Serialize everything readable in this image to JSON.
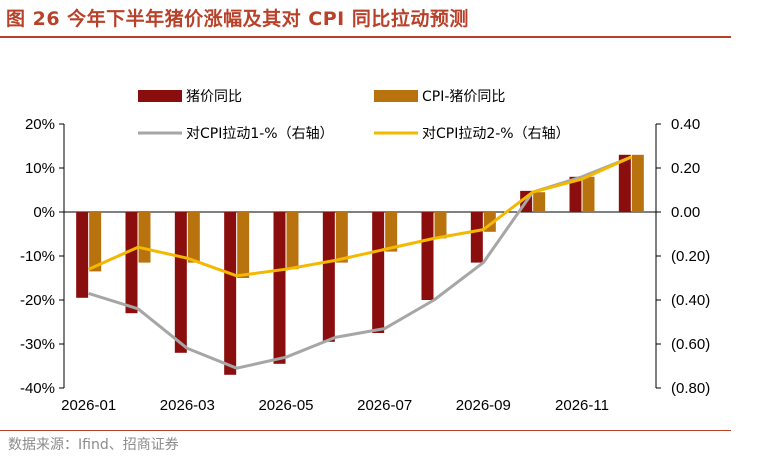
{
  "title": "图 26 今年下半年猪价涨幅及其对 CPI 同比拉动预测",
  "source": "数据来源：Ifind、招商证券",
  "chart_data": {
    "type": "bar",
    "categories": [
      "2026-01",
      "2026-02",
      "2026-03",
      "2026-04",
      "2026-05",
      "2026-06",
      "2026-07",
      "2026-08",
      "2026-09",
      "2026-10",
      "2026-11",
      "2026-12"
    ],
    "x_tick_labels": [
      "2026-01",
      "2026-03",
      "2026-05",
      "2026-07",
      "2026-09",
      "2026-11"
    ],
    "y_left": {
      "min": -40,
      "max": 20,
      "step": 10,
      "ticks": [
        "20%",
        "10%",
        "0%",
        "-10%",
        "-20%",
        "-30%",
        "-40%"
      ]
    },
    "y_right": {
      "min": -0.8,
      "max": 0.4,
      "step": 0.2,
      "ticks": [
        "0.40",
        "0.20",
        "0.00",
        "(0.20)",
        "(0.40)",
        "(0.60)",
        "(0.80)"
      ]
    },
    "legend_placement": "top",
    "series": [
      {
        "name": "猪价同比",
        "kind": "bar",
        "axis": "left",
        "color": "#8b0e0e",
        "values": [
          -19.5,
          -23,
          -32,
          -37,
          -34.5,
          -29.5,
          -27.5,
          -20,
          -11.5,
          4.8,
          8,
          13
        ]
      },
      {
        "name": "CPI-猪价同比",
        "kind": "bar",
        "axis": "left",
        "color": "#b8730e",
        "values": [
          -13.5,
          -11.5,
          -11.5,
          -15,
          -13,
          -11.5,
          -9,
          -6,
          -4.5,
          4.5,
          8,
          13
        ]
      },
      {
        "name": "对CPI拉动1-%（右轴）",
        "kind": "line",
        "axis": "right",
        "color": "#a6a6a6",
        "values": [
          -0.37,
          -0.44,
          -0.62,
          -0.71,
          -0.66,
          -0.57,
          -0.53,
          -0.4,
          -0.23,
          0.09,
          0.16,
          0.25
        ]
      },
      {
        "name": "对CPI拉动2-%（右轴）",
        "kind": "line",
        "axis": "right",
        "color": "#f5b800",
        "values": [
          -0.26,
          -0.16,
          -0.21,
          -0.29,
          -0.26,
          -0.22,
          -0.17,
          -0.12,
          -0.08,
          0.09,
          0.15,
          0.25
        ]
      }
    ]
  }
}
